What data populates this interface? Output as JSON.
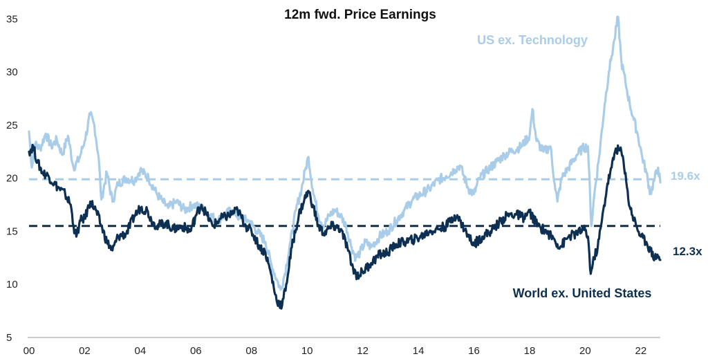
{
  "chart_data": {
    "type": "line",
    "title": "12m fwd. Price Earnings",
    "xlabel": "",
    "ylabel": "",
    "x_range": [
      2000.0,
      2022.7
    ],
    "ylim": [
      5,
      36
    ],
    "y_ticks": [
      5,
      10,
      15,
      20,
      25,
      30,
      35
    ],
    "x_ticks": [
      {
        "value": 2000,
        "label": "00"
      },
      {
        "value": 2002,
        "label": "02"
      },
      {
        "value": 2004,
        "label": "04"
      },
      {
        "value": 2006,
        "label": "06"
      },
      {
        "value": 2008,
        "label": "08"
      },
      {
        "value": 2010,
        "label": "10"
      },
      {
        "value": 2012,
        "label": "12"
      },
      {
        "value": 2014,
        "label": "14"
      },
      {
        "value": 2016,
        "label": "16"
      },
      {
        "value": 2018,
        "label": "18"
      },
      {
        "value": 2020,
        "label": "20"
      },
      {
        "value": 2022,
        "label": "22"
      }
    ],
    "grid": false,
    "legend": "inline labels",
    "series": [
      {
        "name": "US ex. Technology",
        "color": "#a9cde8",
        "points": [
          [
            2000.0,
            24.4
          ],
          [
            2000.1,
            21.0
          ],
          [
            2000.2,
            23.2
          ],
          [
            2000.4,
            22.8
          ],
          [
            2000.6,
            24.2
          ],
          [
            2000.8,
            23.0
          ],
          [
            2001.0,
            23.6
          ],
          [
            2001.2,
            22.2
          ],
          [
            2001.4,
            24.0
          ],
          [
            2001.6,
            21.0
          ],
          [
            2001.8,
            21.8
          ],
          [
            2002.0,
            23.5
          ],
          [
            2002.2,
            26.0
          ],
          [
            2002.35,
            25.0
          ],
          [
            2002.5,
            22.0
          ],
          [
            2002.6,
            18.0
          ],
          [
            2002.8,
            20.5
          ],
          [
            2003.0,
            17.8
          ],
          [
            2003.2,
            19.5
          ],
          [
            2003.5,
            20.0
          ],
          [
            2003.8,
            19.8
          ],
          [
            2004.0,
            20.8
          ],
          [
            2004.3,
            20.0
          ],
          [
            2004.6,
            18.5
          ],
          [
            2004.8,
            17.8
          ],
          [
            2005.0,
            17.2
          ],
          [
            2005.3,
            17.8
          ],
          [
            2005.6,
            17.0
          ],
          [
            2005.9,
            17.5
          ],
          [
            2006.2,
            17.2
          ],
          [
            2006.5,
            16.5
          ],
          [
            2006.8,
            16.0
          ],
          [
            2007.0,
            16.5
          ],
          [
            2007.3,
            17.0
          ],
          [
            2007.6,
            16.2
          ],
          [
            2007.9,
            16.0
          ],
          [
            2008.2,
            15.0
          ],
          [
            2008.5,
            14.0
          ],
          [
            2008.7,
            12.0
          ],
          [
            2008.9,
            10.5
          ],
          [
            2009.05,
            9.5
          ],
          [
            2009.2,
            11.0
          ],
          [
            2009.4,
            14.0
          ],
          [
            2009.6,
            17.0
          ],
          [
            2009.8,
            19.0
          ],
          [
            2009.95,
            21.0
          ],
          [
            2010.05,
            22.0
          ],
          [
            2010.2,
            19.0
          ],
          [
            2010.4,
            16.5
          ],
          [
            2010.6,
            15.5
          ],
          [
            2010.8,
            16.5
          ],
          [
            2011.0,
            17.0
          ],
          [
            2011.2,
            16.5
          ],
          [
            2011.4,
            15.5
          ],
          [
            2011.6,
            13.5
          ],
          [
            2011.75,
            12.5
          ],
          [
            2011.9,
            13.0
          ],
          [
            2012.1,
            14.0
          ],
          [
            2012.3,
            13.5
          ],
          [
            2012.6,
            14.5
          ],
          [
            2012.9,
            15.0
          ],
          [
            2013.2,
            16.0
          ],
          [
            2013.5,
            17.0
          ],
          [
            2013.8,
            18.0
          ],
          [
            2014.1,
            18.5
          ],
          [
            2014.4,
            19.0
          ],
          [
            2014.7,
            19.8
          ],
          [
            2015.0,
            20.2
          ],
          [
            2015.3,
            20.8
          ],
          [
            2015.5,
            21.2
          ],
          [
            2015.8,
            19.0
          ],
          [
            2016.0,
            18.5
          ],
          [
            2016.2,
            20.0
          ],
          [
            2016.5,
            20.8
          ],
          [
            2016.8,
            21.5
          ],
          [
            2017.1,
            22.2
          ],
          [
            2017.4,
            22.6
          ],
          [
            2017.7,
            23.0
          ],
          [
            2018.0,
            24.0
          ],
          [
            2018.1,
            26.5
          ],
          [
            2018.25,
            23.5
          ],
          [
            2018.5,
            22.5
          ],
          [
            2018.75,
            23.0
          ],
          [
            2018.9,
            19.5
          ],
          [
            2019.0,
            17.8
          ],
          [
            2019.15,
            20.0
          ],
          [
            2019.4,
            21.0
          ],
          [
            2019.7,
            22.2
          ],
          [
            2019.9,
            22.8
          ],
          [
            2020.1,
            23.0
          ],
          [
            2020.22,
            15.5
          ],
          [
            2020.35,
            19.0
          ],
          [
            2020.5,
            22.0
          ],
          [
            2020.7,
            27.0
          ],
          [
            2020.85,
            30.0
          ],
          [
            2020.95,
            31.5
          ],
          [
            2021.05,
            33.0
          ],
          [
            2021.18,
            35.2
          ],
          [
            2021.3,
            31.0
          ],
          [
            2021.45,
            29.0
          ],
          [
            2021.6,
            27.0
          ],
          [
            2021.75,
            25.5
          ],
          [
            2021.9,
            24.0
          ],
          [
            2022.05,
            22.0
          ],
          [
            2022.2,
            20.5
          ],
          [
            2022.35,
            18.5
          ],
          [
            2022.5,
            20.0
          ],
          [
            2022.62,
            21.0
          ],
          [
            2022.7,
            19.6
          ]
        ]
      },
      {
        "name": "World ex. United States",
        "color": "#0d2f52",
        "points": [
          [
            2000.0,
            22.5
          ],
          [
            2000.15,
            23.0
          ],
          [
            2000.3,
            21.5
          ],
          [
            2000.5,
            20.5
          ],
          [
            2000.7,
            20.2
          ],
          [
            2000.9,
            19.5
          ],
          [
            2001.1,
            19.0
          ],
          [
            2001.3,
            18.5
          ],
          [
            2001.5,
            17.5
          ],
          [
            2001.6,
            15.5
          ],
          [
            2001.7,
            14.5
          ],
          [
            2001.85,
            16.0
          ],
          [
            2002.0,
            16.2
          ],
          [
            2002.2,
            17.8
          ],
          [
            2002.4,
            17.0
          ],
          [
            2002.6,
            15.5
          ],
          [
            2002.8,
            14.0
          ],
          [
            2003.0,
            13.2
          ],
          [
            2003.2,
            14.5
          ],
          [
            2003.5,
            14.8
          ],
          [
            2003.8,
            16.5
          ],
          [
            2004.0,
            17.2
          ],
          [
            2004.25,
            17.0
          ],
          [
            2004.4,
            16.0
          ],
          [
            2004.6,
            15.5
          ],
          [
            2004.9,
            15.8
          ],
          [
            2005.2,
            15.2
          ],
          [
            2005.5,
            15.5
          ],
          [
            2005.8,
            15.0
          ],
          [
            2006.0,
            16.5
          ],
          [
            2006.2,
            17.5
          ],
          [
            2006.4,
            16.5
          ],
          [
            2006.6,
            15.5
          ],
          [
            2006.9,
            16.2
          ],
          [
            2007.2,
            16.5
          ],
          [
            2007.5,
            17.0
          ],
          [
            2007.8,
            15.5
          ],
          [
            2008.0,
            15.0
          ],
          [
            2008.3,
            13.5
          ],
          [
            2008.5,
            13.0
          ],
          [
            2008.7,
            11.0
          ],
          [
            2008.9,
            8.5
          ],
          [
            2009.1,
            8.0
          ],
          [
            2009.25,
            10.0
          ],
          [
            2009.45,
            13.5
          ],
          [
            2009.7,
            16.5
          ],
          [
            2009.9,
            18.0
          ],
          [
            2010.05,
            18.8
          ],
          [
            2010.2,
            17.5
          ],
          [
            2010.4,
            15.5
          ],
          [
            2010.6,
            14.8
          ],
          [
            2010.9,
            15.5
          ],
          [
            2011.2,
            15.2
          ],
          [
            2011.45,
            13.5
          ],
          [
            2011.6,
            11.8
          ],
          [
            2011.8,
            10.8
          ],
          [
            2012.0,
            11.2
          ],
          [
            2012.3,
            12.0
          ],
          [
            2012.6,
            12.8
          ],
          [
            2012.9,
            13.0
          ],
          [
            2013.2,
            13.8
          ],
          [
            2013.5,
            14.0
          ],
          [
            2013.8,
            14.2
          ],
          [
            2014.1,
            14.5
          ],
          [
            2014.4,
            15.0
          ],
          [
            2014.7,
            15.2
          ],
          [
            2015.0,
            15.5
          ],
          [
            2015.3,
            16.5
          ],
          [
            2015.5,
            16.0
          ],
          [
            2015.8,
            14.5
          ],
          [
            2016.0,
            13.8
          ],
          [
            2016.3,
            14.5
          ],
          [
            2016.6,
            15.0
          ],
          [
            2016.9,
            15.8
          ],
          [
            2017.2,
            16.5
          ],
          [
            2017.5,
            16.6
          ],
          [
            2017.8,
            16.3
          ],
          [
            2018.0,
            16.8
          ],
          [
            2018.3,
            15.5
          ],
          [
            2018.6,
            15.0
          ],
          [
            2018.9,
            14.2
          ],
          [
            2019.1,
            13.5
          ],
          [
            2019.4,
            14.5
          ],
          [
            2019.7,
            14.8
          ],
          [
            2019.95,
            15.2
          ],
          [
            2020.1,
            14.5
          ],
          [
            2020.2,
            11.0
          ],
          [
            2020.32,
            12.5
          ],
          [
            2020.45,
            13.5
          ],
          [
            2020.6,
            16.0
          ],
          [
            2020.8,
            19.5
          ],
          [
            2020.95,
            21.0
          ],
          [
            2021.1,
            22.8
          ],
          [
            2021.3,
            22.5
          ],
          [
            2021.45,
            20.5
          ],
          [
            2021.55,
            18.0
          ],
          [
            2021.7,
            16.5
          ],
          [
            2021.85,
            15.5
          ],
          [
            2022.0,
            14.5
          ],
          [
            2022.2,
            14.0
          ],
          [
            2022.35,
            13.2
          ],
          [
            2022.5,
            12.5
          ],
          [
            2022.6,
            12.8
          ],
          [
            2022.7,
            12.3
          ]
        ]
      }
    ],
    "reference_lines": [
      {
        "series": "US ex. Technology",
        "y": 19.9,
        "color": "#a9cde8",
        "style": "dashed"
      },
      {
        "series": "World ex. United States",
        "y": 15.5,
        "color": "#0d2f52",
        "style": "dashed"
      }
    ],
    "annotations": [
      {
        "text": "19.6x",
        "series": "US ex. Technology"
      },
      {
        "text": "12.3x",
        "series": "World ex. United States"
      }
    ]
  }
}
